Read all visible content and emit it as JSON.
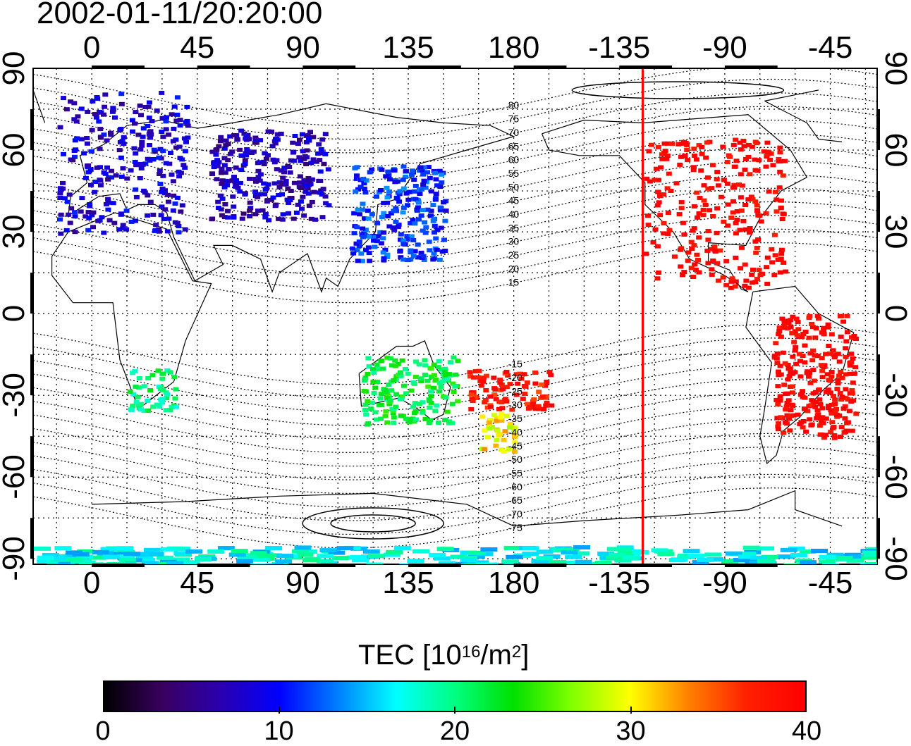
{
  "title": "2002-01-11/20:20:00",
  "map": {
    "longitude_ticks": [
      "0",
      "45",
      "90",
      "135",
      "180",
      "-135",
      "-90",
      "-45"
    ],
    "longitude_tick_values": [
      0,
      45,
      90,
      135,
      180,
      225,
      270,
      315
    ],
    "latitude_ticks": [
      "90",
      "60",
      "30",
      "0",
      "-30",
      "-60",
      "-90"
    ],
    "latitude_tick_values": [
      90,
      60,
      30,
      0,
      -30,
      -60,
      -90
    ],
    "lon_range": [
      -25,
      335
    ],
    "lat_range": [
      -92,
      90
    ],
    "grid": true,
    "terminator_longitude": -125,
    "terminator_color": "#ff0000",
    "contour_labels": [
      "80",
      "75",
      "70",
      "65",
      "60",
      "55",
      "50",
      "45",
      "40",
      "35",
      "30",
      "25",
      "20",
      "15",
      "-15",
      "-20",
      "-25",
      "-30",
      "-35",
      "-40",
      "-45",
      "-50",
      "-55",
      "-60",
      "-65",
      "-70",
      "-75"
    ],
    "contour_label_longitude": 180
  },
  "colorbar": {
    "label_text": "TEC  [10",
    "label_exp1": "16",
    "label_mid": "/m",
    "label_exp2": "2",
    "label_end": "]",
    "min": 0,
    "max": 40,
    "ticks": [
      "0",
      "10",
      "20",
      "30",
      "40"
    ],
    "tick_values": [
      0,
      10,
      20,
      30,
      40
    ],
    "colors": [
      "#000000",
      "#3a0060",
      "#2a00b0",
      "#0000ff",
      "#0080ff",
      "#00ffff",
      "#00ff80",
      "#00e000",
      "#80ff00",
      "#ffff00",
      "#ff8000",
      "#ff2000",
      "#ff0000"
    ]
  },
  "tec_regions": [
    {
      "name": "europe",
      "lon": [
        -15,
        40
      ],
      "lat": [
        30,
        82
      ],
      "tec": 8
    },
    {
      "name": "central-asia",
      "lon": [
        50,
        100
      ],
      "lat": [
        35,
        68
      ],
      "tec": 7
    },
    {
      "name": "east-asia",
      "lon": [
        110,
        150
      ],
      "lat": [
        20,
        55
      ],
      "tec": 11
    },
    {
      "name": "north-america",
      "lon": [
        -125,
        -65
      ],
      "lat": [
        10,
        65
      ],
      "tec": 40
    },
    {
      "name": "south-america",
      "lon": [
        -70,
        -35
      ],
      "lat": [
        -45,
        0
      ],
      "tec": 40
    },
    {
      "name": "africa-south",
      "lon": [
        15,
        35
      ],
      "lat": [
        -35,
        -20
      ],
      "tec": 20
    },
    {
      "name": "australia",
      "lon": [
        115,
        155
      ],
      "lat": [
        -40,
        -15
      ],
      "tec": 22
    },
    {
      "name": "new-zealand",
      "lon": [
        165,
        180
      ],
      "lat": [
        -50,
        -35
      ],
      "tec": 30
    },
    {
      "name": "pacific-south",
      "lon": [
        160,
        195
      ],
      "lat": [
        -35,
        -20
      ],
      "tec": 38
    },
    {
      "name": "antarctica",
      "lon": [
        -25,
        335
      ],
      "lat": [
        -92,
        -85
      ],
      "tec": 17
    }
  ]
}
